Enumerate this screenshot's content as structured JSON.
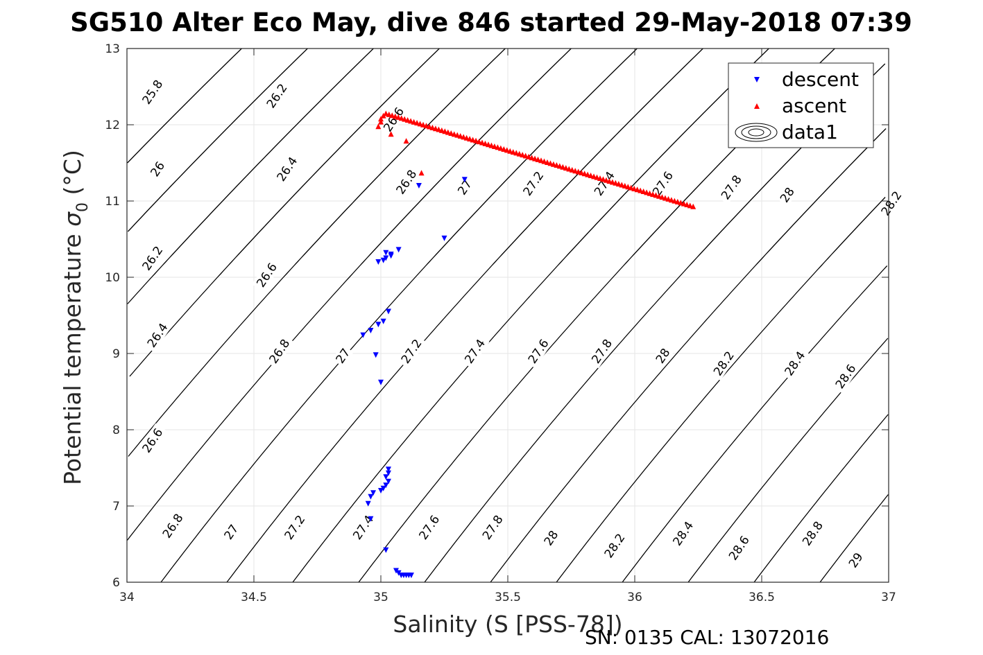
{
  "chart_data": {
    "type": "scatter",
    "title": "SG510 Alter Eco May, dive 846 started 29-May-2018 07:39",
    "xlabel": "Salinity (S [PSS-78])",
    "ylabel": "Potential temperature σ_0 (°C)",
    "xlim": [
      34,
      37
    ],
    "ylim": [
      6,
      13
    ],
    "xticks": [
      34,
      34.5,
      35,
      35.5,
      36,
      36.5,
      37
    ],
    "xtick_labels": [
      "34",
      "34.5",
      "35",
      "35.5",
      "36",
      "36.5",
      "37"
    ],
    "yticks": [
      6,
      7,
      8,
      9,
      10,
      11,
      12,
      13
    ],
    "ytick_labels": [
      "6",
      "7",
      "8",
      "9",
      "10",
      "11",
      "12",
      "13"
    ],
    "grid": true,
    "legend_position": "top-right",
    "legend": [
      "descent",
      "ascent",
      "data1"
    ],
    "contour_levels": [
      25.8,
      26,
      26.2,
      26.4,
      26.6,
      26.8,
      27,
      27.2,
      27.4,
      27.6,
      27.8,
      28,
      28.2,
      28.4,
      28.6,
      28.8,
      29
    ],
    "contour_labels": [
      {
        "text": "25.8",
        "x": 34.1,
        "y": 12.43
      },
      {
        "text": "26.2",
        "x": 34.59,
        "y": 12.38
      },
      {
        "text": "26",
        "x": 34.12,
        "y": 11.42
      },
      {
        "text": "26.4",
        "x": 34.63,
        "y": 11.42
      },
      {
        "text": "26.6",
        "x": 35.05,
        "y": 12.07
      },
      {
        "text": "26.8",
        "x": 35.1,
        "y": 11.25
      },
      {
        "text": "27",
        "x": 35.33,
        "y": 11.18
      },
      {
        "text": "27.2",
        "x": 35.6,
        "y": 11.23
      },
      {
        "text": "27.4",
        "x": 35.88,
        "y": 11.23
      },
      {
        "text": "27.6",
        "x": 36.11,
        "y": 11.23
      },
      {
        "text": "27.8",
        "x": 36.38,
        "y": 11.18
      },
      {
        "text": "28",
        "x": 36.6,
        "y": 11.08
      },
      {
        "text": "28.2",
        "x": 37.01,
        "y": 10.97
      },
      {
        "text": "26.2",
        "x": 34.1,
        "y": 10.25
      },
      {
        "text": "26.6",
        "x": 34.55,
        "y": 10.03
      },
      {
        "text": "26.4",
        "x": 34.12,
        "y": 9.24
      },
      {
        "text": "26.8",
        "x": 34.6,
        "y": 9.03
      },
      {
        "text": "27",
        "x": 34.85,
        "y": 8.97
      },
      {
        "text": "27.2",
        "x": 35.12,
        "y": 9.03
      },
      {
        "text": "27.4",
        "x": 35.37,
        "y": 9.03
      },
      {
        "text": "27.6",
        "x": 35.62,
        "y": 9.03
      },
      {
        "text": "27.8",
        "x": 35.87,
        "y": 9.03
      },
      {
        "text": "28",
        "x": 36.11,
        "y": 8.97
      },
      {
        "text": "28.2",
        "x": 36.35,
        "y": 8.87
      },
      {
        "text": "28.4",
        "x": 36.63,
        "y": 8.87
      },
      {
        "text": "28.6",
        "x": 36.83,
        "y": 8.7
      },
      {
        "text": "26.6",
        "x": 34.1,
        "y": 7.86
      },
      {
        "text": "26.8",
        "x": 34.18,
        "y": 6.74
      },
      {
        "text": "27",
        "x": 34.41,
        "y": 6.66
      },
      {
        "text": "27.2",
        "x": 34.66,
        "y": 6.72
      },
      {
        "text": "27.4",
        "x": 34.93,
        "y": 6.72
      },
      {
        "text": "27.6",
        "x": 35.19,
        "y": 6.72
      },
      {
        "text": "27.8",
        "x": 35.44,
        "y": 6.72
      },
      {
        "text": "28",
        "x": 35.67,
        "y": 6.58
      },
      {
        "text": "28.2",
        "x": 35.92,
        "y": 6.48
      },
      {
        "text": "28.4",
        "x": 36.19,
        "y": 6.64
      },
      {
        "text": "28.6",
        "x": 36.41,
        "y": 6.45
      },
      {
        "text": "28.8",
        "x": 36.7,
        "y": 6.64
      },
      {
        "text": "29",
        "x": 36.87,
        "y": 6.29
      }
    ],
    "series": [
      {
        "name": "descent",
        "marker": "triangle-down",
        "color": "#0000ff",
        "x": [
          35.33,
          35.15,
          35.25,
          35.07,
          35.02,
          35.04,
          34.99,
          35.01,
          35.02,
          35.04,
          35.03,
          35.01,
          34.99,
          34.96,
          34.93,
          34.98,
          35.0,
          35.03,
          35.03,
          35.02,
          35.03,
          35.02,
          35.01,
          35.0,
          34.97,
          34.96,
          34.95,
          34.96,
          35.02,
          35.06,
          35.07,
          35.08,
          35.09,
          35.1,
          35.11,
          35.12
        ],
        "y": [
          11.28,
          11.2,
          10.51,
          10.36,
          10.32,
          10.3,
          10.2,
          10.22,
          10.25,
          10.28,
          9.55,
          9.42,
          9.38,
          9.3,
          9.24,
          8.98,
          8.62,
          7.48,
          7.43,
          7.38,
          7.32,
          7.27,
          7.23,
          7.2,
          7.17,
          7.12,
          7.03,
          6.83,
          6.42,
          6.15,
          6.12,
          6.09,
          6.09,
          6.09,
          6.09,
          6.09
        ]
      },
      {
        "name": "ascent",
        "marker": "triangle-up",
        "color": "#ff0000",
        "x_range": [
          35.02,
          36.23
        ],
        "y_range": [
          12.15,
          10.93
        ],
        "count": 100,
        "extra_x": [
          34.99,
          35.0,
          35.0,
          35.01,
          35.04,
          35.1,
          35.16
        ],
        "extra_y": [
          11.98,
          12.04,
          12.08,
          12.12,
          11.88,
          11.79,
          11.37
        ]
      }
    ]
  },
  "footer": {
    "sn_cal": "SN: 0135  CAL: 13072016"
  }
}
